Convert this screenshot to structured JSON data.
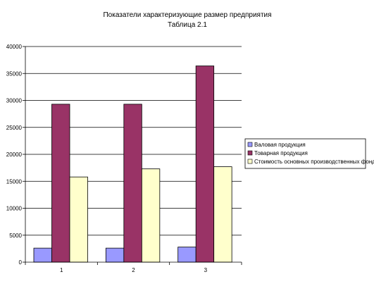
{
  "chart_data": {
    "type": "bar",
    "title": "Показатели характеризующие размер предприятия",
    "subtitle": "Таблица 2.1",
    "categories": [
      "1",
      "2",
      "3"
    ],
    "series": [
      {
        "name": "Валовая продукция",
        "color": "#9999ff",
        "values": [
          2600,
          2600,
          2800
        ]
      },
      {
        "name": "Товарная продукция",
        "color": "#993366",
        "values": [
          29300,
          29300,
          36400
        ]
      },
      {
        "name": "Стоимость основных производственных фондов",
        "color": "#ffffcc",
        "values": [
          15800,
          17300,
          17700
        ]
      }
    ],
    "ylim": [
      0,
      40000
    ],
    "yticks": [
      "0",
      "5000",
      "10000",
      "15000",
      "20000",
      "25000",
      "30000",
      "35000",
      "40000"
    ],
    "grid": true,
    "legend_position": "right"
  }
}
